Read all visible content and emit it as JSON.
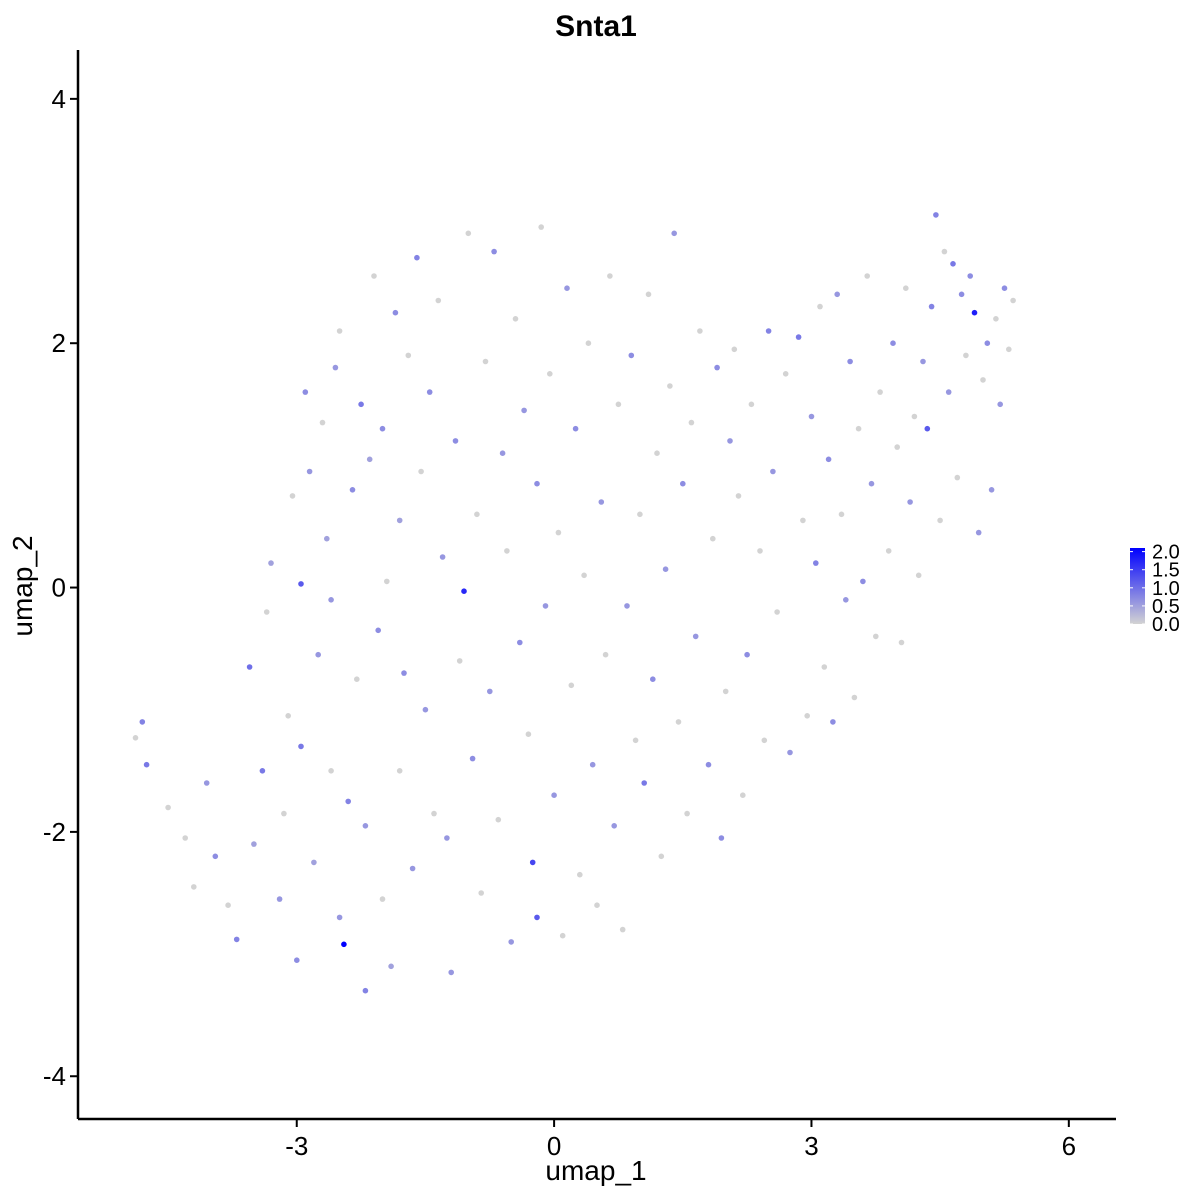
{
  "chart_data": {
    "type": "scatter",
    "title": "Snta1",
    "xlabel": "umap_1",
    "ylabel": "umap_2",
    "xlim": [
      -5.55,
      6.55
    ],
    "ylim": [
      -4.35,
      4.4
    ],
    "x_ticks": [
      -3,
      0,
      3,
      6
    ],
    "y_ticks": [
      -4,
      -2,
      0,
      2,
      4
    ],
    "x_tick_labels": [
      "-3",
      "0",
      "3",
      "6"
    ],
    "y_tick_labels": [
      "-4",
      "-2",
      "0",
      "2",
      "4"
    ],
    "grid": false,
    "colorbar": {
      "low_color": "#d3d3d3",
      "high_color": "#0000ff",
      "range": [
        0,
        2.1
      ],
      "labels": [
        "2.0",
        "1.5",
        "1.0",
        "0.5",
        "0.0"
      ],
      "label_values": [
        2.0,
        1.5,
        1.0,
        0.5,
        0.0
      ],
      "placement": "right"
    },
    "points": [
      {
        "x": -4.8,
        "y": -1.1,
        "v": 0.8
      },
      {
        "x": -4.75,
        "y": -1.45,
        "v": 0.9
      },
      {
        "x": -4.88,
        "y": -1.23,
        "v": 0
      },
      {
        "x": -4.5,
        "y": -1.8,
        "v": 0
      },
      {
        "x": -4.3,
        "y": -2.05,
        "v": 0
      },
      {
        "x": -4.2,
        "y": -2.45,
        "v": 0
      },
      {
        "x": -4.05,
        "y": -1.6,
        "v": 0.6
      },
      {
        "x": -3.95,
        "y": -2.2,
        "v": 0.7
      },
      {
        "x": -3.8,
        "y": -2.6,
        "v": 0
      },
      {
        "x": -3.7,
        "y": -2.88,
        "v": 0.8
      },
      {
        "x": -3.55,
        "y": -0.65,
        "v": 1.0
      },
      {
        "x": -3.5,
        "y": -2.1,
        "v": 0.5
      },
      {
        "x": -3.4,
        "y": -1.5,
        "v": 0.9
      },
      {
        "x": -3.35,
        "y": -0.2,
        "v": 0
      },
      {
        "x": -3.3,
        "y": 0.2,
        "v": 0.5
      },
      {
        "x": -3.2,
        "y": -2.55,
        "v": 0.6
      },
      {
        "x": -3.15,
        "y": -1.85,
        "v": 0
      },
      {
        "x": -3.1,
        "y": -1.05,
        "v": 0
      },
      {
        "x": -3.05,
        "y": 0.75,
        "v": 0
      },
      {
        "x": -3.0,
        "y": -3.05,
        "v": 0.7
      },
      {
        "x": -2.95,
        "y": -1.3,
        "v": 0.9
      },
      {
        "x": -2.95,
        "y": 0.03,
        "v": 1.2
      },
      {
        "x": -2.9,
        "y": 1.6,
        "v": 0.7
      },
      {
        "x": -2.85,
        "y": 0.95,
        "v": 0.6
      },
      {
        "x": -2.8,
        "y": -2.25,
        "v": 0.5
      },
      {
        "x": -2.75,
        "y": -0.55,
        "v": 0.6
      },
      {
        "x": -2.7,
        "y": 1.35,
        "v": 0
      },
      {
        "x": -2.65,
        "y": 0.4,
        "v": 0.5
      },
      {
        "x": -2.6,
        "y": -0.1,
        "v": 0.6
      },
      {
        "x": -2.6,
        "y": -1.5,
        "v": 0
      },
      {
        "x": -2.55,
        "y": 1.8,
        "v": 0.6
      },
      {
        "x": -2.5,
        "y": 2.1,
        "v": 0
      },
      {
        "x": -2.5,
        "y": -2.7,
        "v": 0.6
      },
      {
        "x": -2.45,
        "y": -2.92,
        "v": 2.1
      },
      {
        "x": -2.4,
        "y": -1.75,
        "v": 0.8
      },
      {
        "x": -2.35,
        "y": 0.8,
        "v": 0.7
      },
      {
        "x": -2.3,
        "y": -0.75,
        "v": 0
      },
      {
        "x": -2.25,
        "y": 1.5,
        "v": 0.9
      },
      {
        "x": -2.2,
        "y": -1.95,
        "v": 0.6
      },
      {
        "x": -2.2,
        "y": -3.3,
        "v": 0.8
      },
      {
        "x": -2.15,
        "y": 1.05,
        "v": 0.5
      },
      {
        "x": -2.1,
        "y": 2.55,
        "v": 0
      },
      {
        "x": -2.05,
        "y": -0.35,
        "v": 0.7
      },
      {
        "x": -2.0,
        "y": 1.3,
        "v": 0.7
      },
      {
        "x": -2.0,
        "y": -2.55,
        "v": 0
      },
      {
        "x": -1.95,
        "y": 0.05,
        "v": 0
      },
      {
        "x": -1.9,
        "y": -3.1,
        "v": 0.5
      },
      {
        "x": -1.85,
        "y": 2.25,
        "v": 0.7
      },
      {
        "x": -1.8,
        "y": 0.55,
        "v": 0.5
      },
      {
        "x": -1.8,
        "y": -1.5,
        "v": 0
      },
      {
        "x": -1.75,
        "y": -0.7,
        "v": 0.7
      },
      {
        "x": -1.7,
        "y": 1.9,
        "v": 0
      },
      {
        "x": -1.65,
        "y": -2.3,
        "v": 0.6
      },
      {
        "x": -1.6,
        "y": 2.7,
        "v": 0.8
      },
      {
        "x": -1.55,
        "y": 0.95,
        "v": 0
      },
      {
        "x": -1.5,
        "y": -1.0,
        "v": 0.6
      },
      {
        "x": -1.45,
        "y": 1.6,
        "v": 0.7
      },
      {
        "x": -1.4,
        "y": -1.85,
        "v": 0
      },
      {
        "x": -1.35,
        "y": 2.35,
        "v": 0
      },
      {
        "x": -1.3,
        "y": 0.25,
        "v": 0.6
      },
      {
        "x": -1.25,
        "y": -2.05,
        "v": 0.6
      },
      {
        "x": -1.2,
        "y": -3.15,
        "v": 0.6
      },
      {
        "x": -1.15,
        "y": 1.2,
        "v": 0.7
      },
      {
        "x": -1.1,
        "y": -0.6,
        "v": 0
      },
      {
        "x": -1.05,
        "y": -0.03,
        "v": 1.7
      },
      {
        "x": -1.0,
        "y": 2.9,
        "v": 0
      },
      {
        "x": -0.95,
        "y": -1.4,
        "v": 0.7
      },
      {
        "x": -0.9,
        "y": 0.6,
        "v": 0
      },
      {
        "x": -0.85,
        "y": -2.5,
        "v": 0
      },
      {
        "x": -0.8,
        "y": 1.85,
        "v": 0
      },
      {
        "x": -0.75,
        "y": -0.85,
        "v": 0.6
      },
      {
        "x": -0.7,
        "y": 2.75,
        "v": 0.7
      },
      {
        "x": -0.65,
        "y": -1.9,
        "v": 0
      },
      {
        "x": -0.6,
        "y": 1.1,
        "v": 0.6
      },
      {
        "x": -0.55,
        "y": 0.3,
        "v": 0
      },
      {
        "x": -0.5,
        "y": -2.9,
        "v": 0.6
      },
      {
        "x": -0.45,
        "y": 2.2,
        "v": 0
      },
      {
        "x": -0.4,
        "y": -0.45,
        "v": 0.7
      },
      {
        "x": -0.35,
        "y": 1.45,
        "v": 0.6
      },
      {
        "x": -0.3,
        "y": -1.2,
        "v": 0
      },
      {
        "x": -0.25,
        "y": -2.25,
        "v": 1.4
      },
      {
        "x": -0.2,
        "y": -2.7,
        "v": 1.2
      },
      {
        "x": -0.2,
        "y": 0.85,
        "v": 0.7
      },
      {
        "x": -0.15,
        "y": 2.95,
        "v": 0
      },
      {
        "x": -0.1,
        "y": -0.15,
        "v": 0.6
      },
      {
        "x": -0.05,
        "y": 1.75,
        "v": 0
      },
      {
        "x": 0.0,
        "y": -1.7,
        "v": 0.6
      },
      {
        "x": 0.05,
        "y": 0.45,
        "v": 0
      },
      {
        "x": 0.1,
        "y": -2.85,
        "v": 0
      },
      {
        "x": 0.15,
        "y": 2.45,
        "v": 0.6
      },
      {
        "x": 0.2,
        "y": -0.8,
        "v": 0
      },
      {
        "x": 0.25,
        "y": 1.3,
        "v": 0.7
      },
      {
        "x": 0.3,
        "y": -2.35,
        "v": 0
      },
      {
        "x": 0.35,
        "y": 0.1,
        "v": 0
      },
      {
        "x": 0.4,
        "y": 2.0,
        "v": 0
      },
      {
        "x": 0.45,
        "y": -1.45,
        "v": 0.6
      },
      {
        "x": 0.5,
        "y": -2.6,
        "v": 0
      },
      {
        "x": 0.55,
        "y": 0.7,
        "v": 0.6
      },
      {
        "x": 0.6,
        "y": -0.55,
        "v": 0
      },
      {
        "x": 0.65,
        "y": 2.55,
        "v": 0
      },
      {
        "x": 0.7,
        "y": -1.95,
        "v": 0.6
      },
      {
        "x": 0.75,
        "y": 1.5,
        "v": 0
      },
      {
        "x": 0.8,
        "y": -2.8,
        "v": 0
      },
      {
        "x": 0.85,
        "y": -0.15,
        "v": 0.6
      },
      {
        "x": 0.9,
        "y": 1.9,
        "v": 0.7
      },
      {
        "x": 0.95,
        "y": -1.25,
        "v": 0
      },
      {
        "x": 1.0,
        "y": 0.6,
        "v": 0
      },
      {
        "x": 1.05,
        "y": -1.6,
        "v": 0.9
      },
      {
        "x": 1.1,
        "y": 2.4,
        "v": 0
      },
      {
        "x": 1.15,
        "y": -0.75,
        "v": 0.7
      },
      {
        "x": 1.2,
        "y": 1.1,
        "v": 0
      },
      {
        "x": 1.25,
        "y": -2.2,
        "v": 0
      },
      {
        "x": 1.3,
        "y": 0.15,
        "v": 0.6
      },
      {
        "x": 1.35,
        "y": 1.65,
        "v": 0
      },
      {
        "x": 1.4,
        "y": 2.9,
        "v": 0.6
      },
      {
        "x": 1.45,
        "y": -1.1,
        "v": 0
      },
      {
        "x": 1.5,
        "y": 0.85,
        "v": 0.7
      },
      {
        "x": 1.55,
        "y": -1.85,
        "v": 0
      },
      {
        "x": 1.6,
        "y": 1.35,
        "v": 0
      },
      {
        "x": 1.65,
        "y": -0.4,
        "v": 0.6
      },
      {
        "x": 1.7,
        "y": 2.1,
        "v": 0
      },
      {
        "x": 1.8,
        "y": -1.45,
        "v": 0.7
      },
      {
        "x": 1.85,
        "y": 0.4,
        "v": 0
      },
      {
        "x": 1.9,
        "y": 1.8,
        "v": 0.7
      },
      {
        "x": 1.95,
        "y": -2.05,
        "v": 0.7
      },
      {
        "x": 2.0,
        "y": -0.85,
        "v": 0
      },
      {
        "x": 2.05,
        "y": 1.2,
        "v": 0.6
      },
      {
        "x": 2.1,
        "y": 1.95,
        "v": 0
      },
      {
        "x": 2.15,
        "y": 0.75,
        "v": 0
      },
      {
        "x": 2.2,
        "y": -1.7,
        "v": 0
      },
      {
        "x": 2.25,
        "y": -0.55,
        "v": 0.7
      },
      {
        "x": 2.3,
        "y": 1.5,
        "v": 0
      },
      {
        "x": 2.4,
        "y": 0.3,
        "v": 0
      },
      {
        "x": 2.45,
        "y": -1.25,
        "v": 0
      },
      {
        "x": 2.5,
        "y": 2.1,
        "v": 0.8
      },
      {
        "x": 2.55,
        "y": 0.95,
        "v": 0.6
      },
      {
        "x": 2.6,
        "y": -0.2,
        "v": 0
      },
      {
        "x": 2.7,
        "y": 1.75,
        "v": 0
      },
      {
        "x": 2.75,
        "y": -1.35,
        "v": 0.6
      },
      {
        "x": 2.85,
        "y": 2.05,
        "v": 0.9
      },
      {
        "x": 2.9,
        "y": 0.55,
        "v": 0
      },
      {
        "x": 2.95,
        "y": -1.05,
        "v": 0
      },
      {
        "x": 3.0,
        "y": 1.4,
        "v": 0.6
      },
      {
        "x": 3.05,
        "y": 0.2,
        "v": 0.8
      },
      {
        "x": 3.1,
        "y": 2.3,
        "v": 0
      },
      {
        "x": 3.15,
        "y": -0.65,
        "v": 0
      },
      {
        "x": 3.2,
        "y": 1.05,
        "v": 0.7
      },
      {
        "x": 3.25,
        "y": -1.1,
        "v": 0.7
      },
      {
        "x": 3.3,
        "y": 2.4,
        "v": 0.6
      },
      {
        "x": 3.35,
        "y": 0.6,
        "v": 0
      },
      {
        "x": 3.4,
        "y": -0.1,
        "v": 0.6
      },
      {
        "x": 3.45,
        "y": 1.85,
        "v": 0.7
      },
      {
        "x": 3.5,
        "y": -0.9,
        "v": 0
      },
      {
        "x": 3.55,
        "y": 1.3,
        "v": 0
      },
      {
        "x": 3.6,
        "y": 0.05,
        "v": 0.7
      },
      {
        "x": 3.65,
        "y": 2.55,
        "v": 0
      },
      {
        "x": 3.7,
        "y": 0.85,
        "v": 0.6
      },
      {
        "x": 3.75,
        "y": -0.4,
        "v": 0
      },
      {
        "x": 3.8,
        "y": 1.6,
        "v": 0
      },
      {
        "x": 3.9,
        "y": 0.3,
        "v": 0
      },
      {
        "x": 3.95,
        "y": 2.0,
        "v": 0.7
      },
      {
        "x": 4.0,
        "y": 1.15,
        "v": 0
      },
      {
        "x": 4.05,
        "y": -0.45,
        "v": 0
      },
      {
        "x": 4.1,
        "y": 2.45,
        "v": 0
      },
      {
        "x": 4.15,
        "y": 0.7,
        "v": 0.6
      },
      {
        "x": 4.2,
        "y": 1.4,
        "v": 0
      },
      {
        "x": 4.25,
        "y": 0.1,
        "v": 0
      },
      {
        "x": 4.3,
        "y": 1.85,
        "v": 0.6
      },
      {
        "x": 4.35,
        "y": 1.3,
        "v": 1.2
      },
      {
        "x": 4.4,
        "y": 2.3,
        "v": 0.8
      },
      {
        "x": 4.45,
        "y": 3.05,
        "v": 0.8
      },
      {
        "x": 4.5,
        "y": 0.55,
        "v": 0
      },
      {
        "x": 4.55,
        "y": 2.75,
        "v": 0
      },
      {
        "x": 4.6,
        "y": 1.6,
        "v": 0.6
      },
      {
        "x": 4.65,
        "y": 2.65,
        "v": 0.9
      },
      {
        "x": 4.7,
        "y": 0.9,
        "v": 0
      },
      {
        "x": 4.75,
        "y": 2.4,
        "v": 0.7
      },
      {
        "x": 4.8,
        "y": 1.9,
        "v": 0
      },
      {
        "x": 4.85,
        "y": 2.55,
        "v": 0.7
      },
      {
        "x": 4.9,
        "y": 2.25,
        "v": 1.8
      },
      {
        "x": 4.95,
        "y": 0.45,
        "v": 0.6
      },
      {
        "x": 5.0,
        "y": 1.7,
        "v": 0
      },
      {
        "x": 5.05,
        "y": 2.0,
        "v": 0.7
      },
      {
        "x": 5.1,
        "y": 0.8,
        "v": 0.6
      },
      {
        "x": 5.15,
        "y": 2.2,
        "v": 0
      },
      {
        "x": 5.2,
        "y": 1.5,
        "v": 0.6
      },
      {
        "x": 5.25,
        "y": 2.45,
        "v": 0.7
      },
      {
        "x": 5.3,
        "y": 1.95,
        "v": 0
      },
      {
        "x": 5.35,
        "y": 2.35,
        "v": 0
      }
    ]
  }
}
